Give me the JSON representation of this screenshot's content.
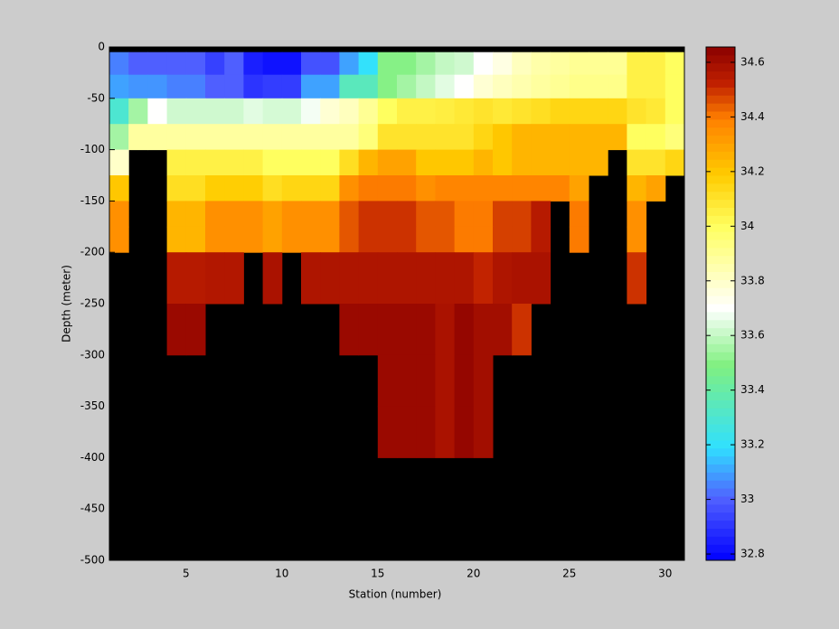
{
  "chart_data": {
    "type": "heatmap",
    "xlabel": "Station (number)",
    "ylabel": "Depth (meter)",
    "x": [
      1,
      2,
      3,
      4,
      5,
      6,
      7,
      8,
      9,
      10,
      11,
      12,
      13,
      14,
      15,
      16,
      17,
      18,
      19,
      20,
      21,
      22,
      23,
      24,
      25,
      26,
      27,
      28,
      29,
      30
    ],
    "y_edges": [
      -5,
      -27,
      -50,
      -75,
      -100,
      -125,
      -150,
      -175,
      -200,
      -250,
      -300,
      -350,
      -400
    ],
    "values": [
      [
        33.05,
        33.0,
        33.0,
        33.0,
        33.0,
        32.93,
        33.0,
        32.85,
        32.82,
        32.82,
        32.97,
        32.97,
        33.1,
        33.2,
        33.5,
        33.5,
        33.55,
        33.6,
        33.62,
        33.7,
        33.75,
        33.82,
        33.86,
        33.88,
        33.9,
        33.9,
        33.9,
        34.05,
        34.05,
        34.0
      ],
      [
        33.1,
        33.08,
        33.08,
        33.05,
        33.05,
        33.0,
        33.0,
        32.9,
        32.92,
        32.92,
        33.1,
        33.1,
        33.35,
        33.35,
        33.5,
        33.55,
        33.6,
        33.65,
        33.7,
        33.78,
        33.82,
        33.85,
        33.88,
        33.9,
        33.92,
        33.92,
        33.92,
        34.05,
        34.05,
        34.0
      ],
      [
        33.3,
        33.55,
        33.7,
        33.62,
        33.62,
        33.62,
        33.62,
        33.65,
        33.63,
        33.63,
        33.68,
        33.78,
        33.82,
        33.9,
        34.0,
        34.05,
        34.05,
        34.06,
        34.08,
        34.1,
        34.08,
        34.1,
        34.12,
        34.15,
        34.15,
        34.15,
        34.15,
        34.1,
        34.08,
        34.0
      ],
      [
        33.55,
        33.88,
        33.88,
        33.88,
        33.88,
        33.88,
        33.88,
        33.88,
        33.88,
        33.88,
        33.88,
        33.88,
        33.88,
        33.95,
        34.1,
        34.1,
        34.1,
        34.1,
        34.1,
        34.15,
        34.2,
        34.25,
        34.25,
        34.25,
        34.25,
        34.25,
        34.25,
        34.0,
        34.0,
        33.95
      ],
      [
        33.8,
        null,
        null,
        34.05,
        34.05,
        34.05,
        34.05,
        34.05,
        34.0,
        34.0,
        34.0,
        34.0,
        34.12,
        34.25,
        34.3,
        34.3,
        34.2,
        34.2,
        34.2,
        34.25,
        34.2,
        34.25,
        34.25,
        34.25,
        34.25,
        34.25,
        null,
        34.1,
        34.1,
        34.15
      ],
      [
        34.2,
        null,
        null,
        34.12,
        34.12,
        34.18,
        34.18,
        34.18,
        34.12,
        34.15,
        34.15,
        34.15,
        34.35,
        34.4,
        34.4,
        34.4,
        34.35,
        34.38,
        34.38,
        34.38,
        34.38,
        34.38,
        34.38,
        34.38,
        34.3,
        null,
        null,
        34.25,
        34.3,
        null
      ],
      [
        34.35,
        null,
        null,
        34.25,
        34.25,
        34.35,
        34.35,
        34.35,
        34.3,
        34.35,
        34.35,
        34.35,
        34.45,
        34.5,
        34.5,
        34.5,
        34.45,
        34.45,
        34.4,
        34.4,
        34.48,
        34.48,
        34.55,
        null,
        34.4,
        null,
        null,
        34.35,
        null,
        null
      ],
      [
        34.35,
        null,
        null,
        34.25,
        34.25,
        34.35,
        34.35,
        34.35,
        34.3,
        34.35,
        34.35,
        34.35,
        34.45,
        34.5,
        34.5,
        34.5,
        34.45,
        34.45,
        34.4,
        34.4,
        34.48,
        34.48,
        34.55,
        null,
        34.4,
        null,
        null,
        34.35,
        null,
        null
      ],
      [
        null,
        null,
        null,
        34.55,
        34.55,
        34.56,
        34.56,
        null,
        34.58,
        null,
        34.57,
        34.57,
        34.57,
        34.57,
        34.57,
        34.57,
        34.57,
        34.57,
        34.57,
        34.52,
        34.57,
        34.58,
        34.58,
        null,
        null,
        null,
        null,
        34.5,
        null,
        null
      ],
      [
        null,
        null,
        null,
        34.62,
        34.62,
        null,
        null,
        null,
        null,
        null,
        null,
        null,
        34.62,
        34.62,
        34.62,
        34.62,
        34.62,
        34.58,
        34.63,
        34.6,
        34.6,
        34.5,
        null,
        null,
        null,
        null,
        null,
        null,
        null,
        null
      ],
      [
        null,
        null,
        null,
        null,
        null,
        null,
        null,
        null,
        null,
        null,
        null,
        null,
        null,
        null,
        34.62,
        34.62,
        34.62,
        34.58,
        34.63,
        34.6,
        null,
        null,
        null,
        null,
        null,
        null,
        null,
        null,
        null,
        null
      ],
      [
        null,
        null,
        null,
        null,
        null,
        null,
        null,
        null,
        null,
        null,
        null,
        null,
        null,
        null,
        34.62,
        34.62,
        34.62,
        34.58,
        34.63,
        34.6,
        null,
        null,
        null,
        null,
        null,
        null,
        null,
        null,
        null,
        null
      ]
    ],
    "xlim": [
      1,
      31
    ],
    "xticks": [
      5,
      10,
      15,
      20,
      25,
      30
    ],
    "ylim": [
      -500,
      0
    ],
    "yticks": [
      0,
      -50,
      -100,
      -150,
      -200,
      -250,
      -300,
      -350,
      -400,
      -450,
      -500
    ],
    "background": "#000000",
    "clim": [
      32.777,
      34.656
    ],
    "cticks": [
      32.8,
      33,
      33.2,
      33.4,
      33.6,
      33.8,
      34,
      34.2,
      34.4,
      34.6
    ],
    "colormap": [
      [
        0,
        "#0000ff"
      ],
      [
        0.12,
        "#5060ff"
      ],
      [
        0.22,
        "#30e0ff"
      ],
      [
        0.38,
        "#80f080"
      ],
      [
        0.49,
        "#ffffff"
      ],
      [
        0.65,
        "#ffff60"
      ],
      [
        0.75,
        "#ffcc00"
      ],
      [
        0.86,
        "#ff8000"
      ],
      [
        0.93,
        "#c02000"
      ],
      [
        1,
        "#8b0000"
      ]
    ]
  }
}
